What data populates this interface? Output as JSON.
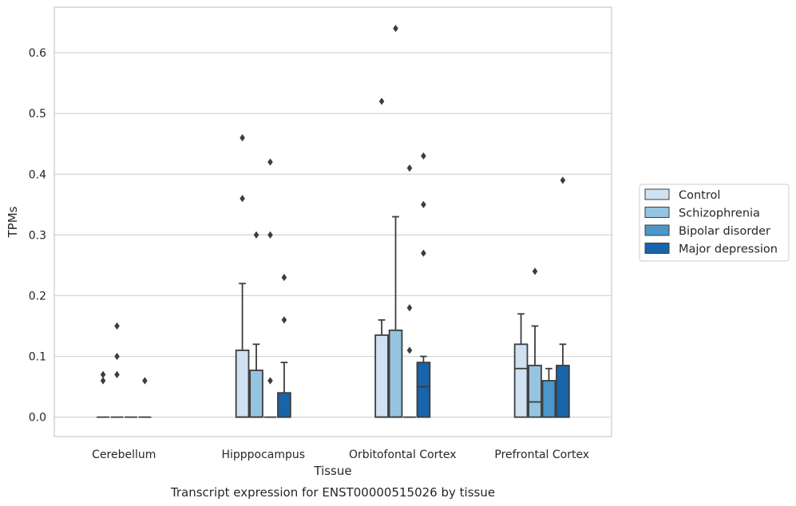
{
  "chart_data": {
    "type": "box",
    "xlabel": "Tissue",
    "ylabel": "TPMs",
    "caption": "Transcript expression for ENST00000515026 by tissue",
    "ylim": [
      -0.032,
      0.675
    ],
    "yticks": [
      0.0,
      0.1,
      0.2,
      0.3,
      0.4,
      0.5,
      0.6
    ],
    "ytick_labels": [
      "0.0",
      "0.1",
      "0.2",
      "0.3",
      "0.4",
      "0.5",
      "0.6"
    ],
    "grid": true,
    "legend_position": "right",
    "categories": [
      "Cerebellum",
      "Hipppocampus",
      "Orbitofontal Cortex",
      "Prefrontal Cortex"
    ],
    "series": [
      {
        "name": "Control",
        "color": "#d0e1f2",
        "boxes": [
          {
            "q1": 0,
            "median": 0,
            "q3": 0,
            "whisker_low": 0,
            "whisker_high": 0,
            "outliers": [
              0.06,
              0.07
            ]
          },
          {
            "q1": 0,
            "median": 0,
            "q3": 0.11,
            "whisker_low": 0,
            "whisker_high": 0.22,
            "outliers": [
              0.36,
              0.46
            ]
          },
          {
            "q1": 0,
            "median": 0,
            "q3": 0.135,
            "whisker_low": 0,
            "whisker_high": 0.16,
            "outliers": [
              0.52
            ]
          },
          {
            "q1": 0,
            "median": 0.08,
            "q3": 0.12,
            "whisker_low": 0,
            "whisker_high": 0.17,
            "outliers": []
          }
        ]
      },
      {
        "name": "Schizophrenia",
        "color": "#94c4df",
        "boxes": [
          {
            "q1": 0,
            "median": 0,
            "q3": 0,
            "whisker_low": 0,
            "whisker_high": 0,
            "outliers": [
              0.07,
              0.1,
              0.15
            ]
          },
          {
            "q1": 0,
            "median": 0,
            "q3": 0.077,
            "whisker_low": 0,
            "whisker_high": 0.12,
            "outliers": [
              0.3
            ]
          },
          {
            "q1": 0,
            "median": 0,
            "q3": 0.143,
            "whisker_low": 0,
            "whisker_high": 0.33,
            "outliers": [
              0.64
            ]
          },
          {
            "q1": 0,
            "median": 0.025,
            "q3": 0.085,
            "whisker_low": 0,
            "whisker_high": 0.15,
            "outliers": [
              0.24
            ]
          }
        ]
      },
      {
        "name": "Bipolar disorder",
        "color": "#4a98c9",
        "boxes": [
          {
            "q1": 0,
            "median": 0,
            "q3": 0,
            "whisker_low": 0,
            "whisker_high": 0,
            "outliers": []
          },
          {
            "q1": 0,
            "median": 0,
            "q3": 0,
            "whisker_low": 0,
            "whisker_high": 0,
            "outliers": [
              0.06,
              0.3,
              0.42
            ]
          },
          {
            "q1": 0,
            "median": 0,
            "q3": 0,
            "whisker_low": 0,
            "whisker_high": 0,
            "outliers": [
              0.11,
              0.18,
              0.41
            ]
          },
          {
            "q1": 0,
            "median": 0,
            "q3": 0.06,
            "whisker_low": 0,
            "whisker_high": 0.08,
            "outliers": []
          }
        ]
      },
      {
        "name": "Major depression",
        "color": "#1764ab",
        "boxes": [
          {
            "q1": 0,
            "median": 0,
            "q3": 0,
            "whisker_low": 0,
            "whisker_high": 0,
            "outliers": [
              0.06
            ]
          },
          {
            "q1": 0,
            "median": 0,
            "q3": 0.04,
            "whisker_low": 0,
            "whisker_high": 0.09,
            "outliers": [
              0.16,
              0.23
            ]
          },
          {
            "q1": 0,
            "median": 0.05,
            "q3": 0.09,
            "whisker_low": 0,
            "whisker_high": 0.1,
            "outliers": [
              0.27,
              0.35,
              0.43
            ]
          },
          {
            "q1": 0,
            "median": 0,
            "q3": 0.085,
            "whisker_low": 0,
            "whisker_high": 0.12,
            "outliers": [
              0.39
            ]
          }
        ]
      }
    ]
  }
}
